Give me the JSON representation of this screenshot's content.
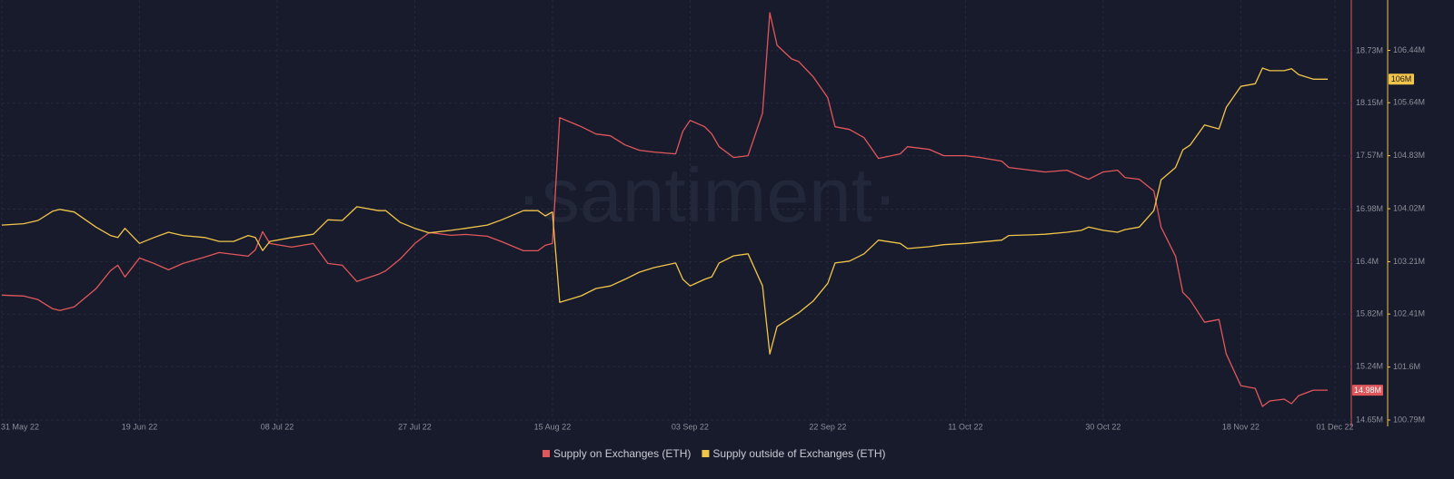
{
  "chart_data": {
    "type": "line",
    "watermark": "·santiment·",
    "x": [
      "2022-05-31",
      "2022-06-03",
      "2022-06-05",
      "2022-06-07",
      "2022-06-08",
      "2022-06-10",
      "2022-06-13",
      "2022-06-15",
      "2022-06-16",
      "2022-06-17",
      "2022-06-19",
      "2022-06-21",
      "2022-06-23",
      "2022-06-25",
      "2022-06-28",
      "2022-06-30",
      "2022-07-02",
      "2022-07-04",
      "2022-07-05",
      "2022-07-06",
      "2022-07-07",
      "2022-07-10",
      "2022-07-13",
      "2022-07-15",
      "2022-07-17",
      "2022-07-19",
      "2022-07-22",
      "2022-07-23",
      "2022-07-25",
      "2022-07-27",
      "2022-07-29",
      "2022-08-01",
      "2022-08-03",
      "2022-08-06",
      "2022-08-08",
      "2022-08-11",
      "2022-08-13",
      "2022-08-14",
      "2022-08-15",
      "2022-08-16",
      "2022-08-19",
      "2022-08-21",
      "2022-08-23",
      "2022-08-25",
      "2022-08-27",
      "2022-08-29",
      "2022-09-01",
      "2022-09-02",
      "2022-09-03",
      "2022-09-05",
      "2022-09-06",
      "2022-09-07",
      "2022-09-09",
      "2022-09-11",
      "2022-09-13",
      "2022-09-14",
      "2022-09-15",
      "2022-09-17",
      "2022-09-18",
      "2022-09-20",
      "2022-09-22",
      "2022-09-23",
      "2022-09-25",
      "2022-09-27",
      "2022-09-29",
      "2022-10-02",
      "2022-10-03",
      "2022-10-06",
      "2022-10-08",
      "2022-10-11",
      "2022-10-13",
      "2022-10-16",
      "2022-10-17",
      "2022-10-20",
      "2022-10-22",
      "2022-10-25",
      "2022-10-27",
      "2022-10-28",
      "2022-10-30",
      "2022-11-01",
      "2022-11-02",
      "2022-11-04",
      "2022-11-06",
      "2022-11-07",
      "2022-11-09",
      "2022-11-10",
      "2022-11-11",
      "2022-11-13",
      "2022-11-15",
      "2022-11-16",
      "2022-11-18",
      "2022-11-20",
      "2022-11-21",
      "2022-11-22",
      "2022-11-24",
      "2022-11-25",
      "2022-11-26",
      "2022-11-28",
      "2022-11-30"
    ],
    "xlim": [
      "2022-05-31",
      "2022-12-01"
    ],
    "xticks": [
      {
        "value": "2022-05-31",
        "label": "31 May 22"
      },
      {
        "value": "2022-06-19",
        "label": "19 Jun 22"
      },
      {
        "value": "2022-07-08",
        "label": "08 Jul 22"
      },
      {
        "value": "2022-07-27",
        "label": "27 Jul 22"
      },
      {
        "value": "2022-08-15",
        "label": "15 Aug 22"
      },
      {
        "value": "2022-09-03",
        "label": "03 Sep 22"
      },
      {
        "value": "2022-09-22",
        "label": "22 Sep 22"
      },
      {
        "value": "2022-10-11",
        "label": "11 Oct 22"
      },
      {
        "value": "2022-10-30",
        "label": "30 Oct 22"
      },
      {
        "value": "2022-11-18",
        "label": "18 Nov 22"
      },
      {
        "value": "2022-12-01",
        "label": "01 Dec 22"
      }
    ],
    "ylim": [
      14650000,
      19290000
    ],
    "yticks": [
      {
        "value": 14650000,
        "label": "14.65M"
      },
      {
        "value": 15240000,
        "label": "15.24M"
      },
      {
        "value": 15820000,
        "label": "15.82M"
      },
      {
        "value": 16400000,
        "label": "16.4M"
      },
      {
        "value": 16980000,
        "label": "16.98M"
      },
      {
        "value": 17570000,
        "label": "17.57M"
      },
      {
        "value": 18150000,
        "label": "18.15M"
      },
      {
        "value": 18730000,
        "label": "18.73M"
      }
    ],
    "y2lim": [
      100790000,
      107210000
    ],
    "y2ticks": [
      {
        "value": 100790000,
        "label": "100.79M"
      },
      {
        "value": 101600000,
        "label": "101.6M"
      },
      {
        "value": 102410000,
        "label": "102.41M"
      },
      {
        "value": 103210000,
        "label": "103.21M"
      },
      {
        "value": 104020000,
        "label": "104.02M"
      },
      {
        "value": 104830000,
        "label": "104.83M"
      },
      {
        "value": 105640000,
        "label": "105.64M"
      },
      {
        "value": 106440000,
        "label": "106.44M"
      }
    ],
    "grid": true,
    "series": [
      {
        "name": "Supply on Exchanges (ETH)",
        "color": "#e0575b",
        "axis": "y",
        "current_value_label": {
          "value": 14980000,
          "label": "14.98M"
        },
        "values": [
          16030000,
          16020000,
          15980000,
          15880000,
          15860000,
          15900000,
          16100000,
          16300000,
          16360000,
          16230000,
          16440000,
          16380000,
          16310000,
          16380000,
          16450000,
          16500000,
          16480000,
          16460000,
          16530000,
          16730000,
          16600000,
          16560000,
          16600000,
          16380000,
          16360000,
          16180000,
          16260000,
          16300000,
          16430000,
          16600000,
          16720000,
          16690000,
          16700000,
          16680000,
          16620000,
          16520000,
          16520000,
          16580000,
          16600000,
          17990000,
          17890000,
          17810000,
          17790000,
          17690000,
          17630000,
          17610000,
          17590000,
          17840000,
          17960000,
          17890000,
          17810000,
          17670000,
          17550000,
          17570000,
          18040000,
          19150000,
          18790000,
          18640000,
          18610000,
          18440000,
          18210000,
          17890000,
          17860000,
          17770000,
          17540000,
          17590000,
          17670000,
          17640000,
          17570000,
          17570000,
          17550000,
          17510000,
          17440000,
          17410000,
          17390000,
          17410000,
          17340000,
          17310000,
          17390000,
          17410000,
          17330000,
          17310000,
          17180000,
          16780000,
          16460000,
          16060000,
          15980000,
          15730000,
          15760000,
          15380000,
          15030000,
          15000000,
          14800000,
          14860000,
          14880000,
          14830000,
          14920000,
          14980000,
          14980000
        ]
      },
      {
        "name": "Supply outside of Exchanges (ETH)",
        "color": "#f1c54a",
        "axis": "y2",
        "current_value_label": {
          "value": 106000000,
          "label": "106M"
        },
        "values": [
          103770000,
          103790000,
          103840000,
          103980000,
          104010000,
          103970000,
          103740000,
          103610000,
          103580000,
          103720000,
          103490000,
          103580000,
          103660000,
          103610000,
          103580000,
          103520000,
          103520000,
          103610000,
          103580000,
          103380000,
          103520000,
          103580000,
          103630000,
          103850000,
          103840000,
          104050000,
          103990000,
          103990000,
          103810000,
          103720000,
          103650000,
          103690000,
          103720000,
          103770000,
          103850000,
          103990000,
          103990000,
          103910000,
          103970000,
          102590000,
          102690000,
          102800000,
          102840000,
          102940000,
          103050000,
          103120000,
          103190000,
          102940000,
          102840000,
          102940000,
          102980000,
          103190000,
          103300000,
          103330000,
          102840000,
          101800000,
          102220000,
          102360000,
          102430000,
          102610000,
          102880000,
          103190000,
          103220000,
          103330000,
          103540000,
          103490000,
          103410000,
          103440000,
          103470000,
          103490000,
          103510000,
          103540000,
          103610000,
          103620000,
          103630000,
          103660000,
          103690000,
          103740000,
          103690000,
          103660000,
          103700000,
          103740000,
          103990000,
          104460000,
          104650000,
          104920000,
          104990000,
          105300000,
          105240000,
          105570000,
          105890000,
          105930000,
          106170000,
          106130000,
          106130000,
          106160000,
          106070000,
          106000000,
          106000000
        ]
      }
    ]
  }
}
